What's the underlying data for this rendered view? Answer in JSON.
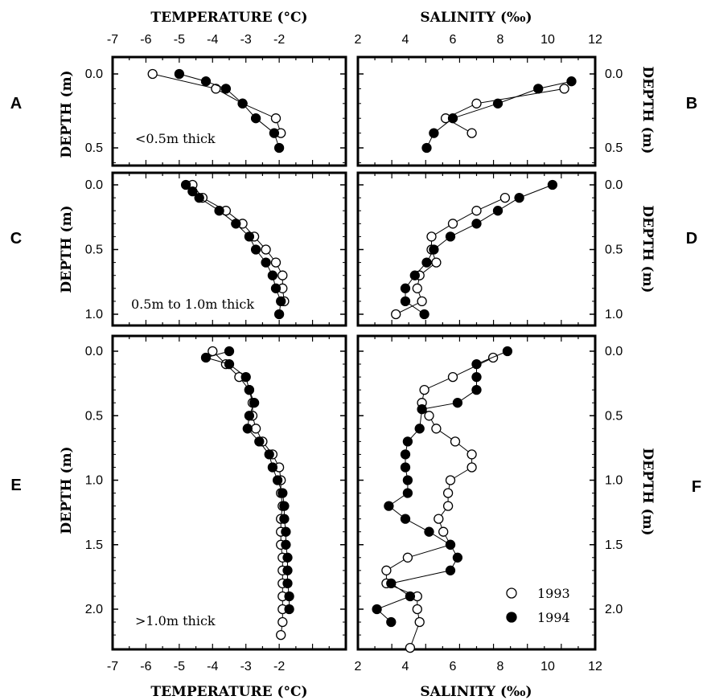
{
  "labels": {
    "temperature_axis": "TEMPERATURE (°C)",
    "salinity_axis": "SALINITY (‰)",
    "depth_axis": "DEPTH (m)"
  },
  "legend": {
    "open": "1993",
    "filled": "1994"
  },
  "chart_data": [
    {
      "panel": "A",
      "type": "scatter",
      "note": "<0.5m thick",
      "xlabel": "TEMPERATURE (°C)",
      "ylabel": "DEPTH (m)",
      "xlim": [
        -7,
        0
      ],
      "ylim": [
        0.5,
        0
      ],
      "ytick_labels": [
        "0.0",
        "0.5"
      ],
      "series": [
        {
          "name": "1993",
          "points": [
            [
              -5.8,
              0.0
            ],
            [
              -3.9,
              0.1
            ],
            [
              -3.1,
              0.2
            ],
            [
              -2.1,
              0.3
            ],
            [
              -1.95,
              0.4
            ]
          ]
        },
        {
          "name": "1994",
          "points": [
            [
              -5.0,
              0.0
            ],
            [
              -4.2,
              0.05
            ],
            [
              -3.6,
              0.1
            ],
            [
              -3.1,
              0.2
            ],
            [
              -2.7,
              0.3
            ],
            [
              -2.15,
              0.4
            ],
            [
              -2.0,
              0.5
            ]
          ]
        }
      ]
    },
    {
      "panel": "B",
      "type": "scatter",
      "xlabel": "SALINITY (‰)",
      "ylabel": "DEPTH (m)",
      "xlim": [
        2,
        12
      ],
      "ylim": [
        0.5,
        0
      ],
      "ytick_labels": [
        "0.0",
        "0.5"
      ],
      "series": [
        {
          "name": "1993",
          "points": [
            [
              10.7,
              0.1
            ],
            [
              7.0,
              0.2
            ],
            [
              5.7,
              0.3
            ],
            [
              6.8,
              0.4
            ]
          ]
        },
        {
          "name": "1994",
          "points": [
            [
              11.0,
              0.05
            ],
            [
              9.6,
              0.1
            ],
            [
              7.9,
              0.2
            ],
            [
              6.0,
              0.3
            ],
            [
              5.2,
              0.4
            ],
            [
              4.9,
              0.5
            ]
          ]
        }
      ]
    },
    {
      "panel": "C",
      "type": "scatter",
      "note": "0.5m to 1.0m thick",
      "xlabel": "TEMPERATURE (°C)",
      "ylabel": "DEPTH (m)",
      "xlim": [
        -7,
        0
      ],
      "ylim": [
        1.0,
        0
      ],
      "ytick_labels": [
        "0.0",
        "0.5",
        "1.0"
      ],
      "series": [
        {
          "name": "1993",
          "points": [
            [
              -4.6,
              0.0
            ],
            [
              -4.3,
              0.1
            ],
            [
              -3.6,
              0.2
            ],
            [
              -3.1,
              0.3
            ],
            [
              -2.75,
              0.4
            ],
            [
              -2.4,
              0.5
            ],
            [
              -2.1,
              0.6
            ],
            [
              -1.9,
              0.7
            ],
            [
              -1.9,
              0.8
            ],
            [
              -1.85,
              0.9
            ]
          ]
        },
        {
          "name": "1994",
          "points": [
            [
              -4.8,
              0.0
            ],
            [
              -4.6,
              0.05
            ],
            [
              -4.4,
              0.1
            ],
            [
              -3.8,
              0.2
            ],
            [
              -3.3,
              0.3
            ],
            [
              -2.9,
              0.4
            ],
            [
              -2.7,
              0.5
            ],
            [
              -2.4,
              0.6
            ],
            [
              -2.2,
              0.7
            ],
            [
              -2.1,
              0.8
            ],
            [
              -1.95,
              0.9
            ],
            [
              -2.0,
              1.0
            ]
          ]
        }
      ]
    },
    {
      "panel": "D",
      "type": "scatter",
      "xlabel": "SALINITY (‰)",
      "ylabel": "DEPTH (m)",
      "xlim": [
        2,
        12
      ],
      "ylim": [
        1.0,
        0
      ],
      "ytick_labels": [
        "0.0",
        "0.5",
        "1.0"
      ],
      "series": [
        {
          "name": "1993",
          "points": [
            [
              8.2,
              0.1
            ],
            [
              7.0,
              0.2
            ],
            [
              6.0,
              0.3
            ],
            [
              5.1,
              0.4
            ],
            [
              5.1,
              0.5
            ],
            [
              5.3,
              0.6
            ],
            [
              4.6,
              0.7
            ],
            [
              4.5,
              0.8
            ],
            [
              4.7,
              0.9
            ],
            [
              3.6,
              1.0
            ]
          ]
        },
        {
          "name": "1994",
          "points": [
            [
              10.2,
              0.0
            ],
            [
              8.8,
              0.1
            ],
            [
              7.9,
              0.2
            ],
            [
              7.0,
              0.3
            ],
            [
              5.9,
              0.4
            ],
            [
              5.2,
              0.5
            ],
            [
              4.9,
              0.6
            ],
            [
              4.4,
              0.7
            ],
            [
              4.0,
              0.8
            ],
            [
              4.0,
              0.9
            ],
            [
              4.8,
              1.0
            ]
          ]
        }
      ]
    },
    {
      "panel": "E",
      "type": "scatter",
      "note": ">1.0m thick",
      "xlabel": "TEMPERATURE (°C)",
      "ylabel": "DEPTH (m)",
      "xlim": [
        -7,
        0
      ],
      "ylim": [
        2.3,
        0
      ],
      "ytick_labels": [
        "0.0",
        "0.5",
        "1.0",
        "1.5",
        "2.0"
      ],
      "series": [
        {
          "name": "1993",
          "points": [
            [
              -4.0,
              0.0
            ],
            [
              -3.6,
              0.1
            ],
            [
              -3.2,
              0.2
            ],
            [
              -2.9,
              0.3
            ],
            [
              -2.8,
              0.4
            ],
            [
              -2.8,
              0.5
            ],
            [
              -2.7,
              0.6
            ],
            [
              -2.5,
              0.7
            ],
            [
              -2.2,
              0.8
            ],
            [
              -2.0,
              0.9
            ],
            [
              -1.95,
              1.0
            ],
            [
              -1.95,
              1.1
            ],
            [
              -1.9,
              1.2
            ],
            [
              -1.95,
              1.3
            ],
            [
              -1.95,
              1.4
            ],
            [
              -1.95,
              1.5
            ],
            [
              -1.9,
              1.6
            ],
            [
              -1.9,
              1.7
            ],
            [
              -1.9,
              1.8
            ],
            [
              -1.9,
              1.9
            ],
            [
              -1.9,
              2.0
            ],
            [
              -1.9,
              2.1
            ],
            [
              -1.95,
              2.2
            ]
          ]
        },
        {
          "name": "1994",
          "points": [
            [
              -3.5,
              0.0
            ],
            [
              -4.2,
              0.05
            ],
            [
              -3.5,
              0.1
            ],
            [
              -3.0,
              0.2
            ],
            [
              -2.9,
              0.3
            ],
            [
              -2.75,
              0.4
            ],
            [
              -2.9,
              0.5
            ],
            [
              -2.95,
              0.6
            ],
            [
              -2.6,
              0.7
            ],
            [
              -2.3,
              0.8
            ],
            [
              -2.2,
              0.9
            ],
            [
              -2.05,
              1.0
            ],
            [
              -1.9,
              1.1
            ],
            [
              -1.85,
              1.2
            ],
            [
              -1.85,
              1.3
            ],
            [
              -1.8,
              1.4
            ],
            [
              -1.8,
              1.5
            ],
            [
              -1.75,
              1.6
            ],
            [
              -1.75,
              1.7
            ],
            [
              -1.75,
              1.8
            ],
            [
              -1.7,
              1.9
            ],
            [
              -1.7,
              2.0
            ]
          ]
        }
      ]
    },
    {
      "panel": "F",
      "type": "scatter",
      "xlabel": "SALINITY (‰)",
      "ylabel": "DEPTH (m)",
      "xlim": [
        2,
        12
      ],
      "ylim": [
        2.3,
        0
      ],
      "ytick_labels": [
        "0.0",
        "0.5",
        "1.0",
        "1.5",
        "2.0"
      ],
      "series": [
        {
          "name": "1993",
          "points": [
            [
              7.7,
              0.05
            ],
            [
              6.0,
              0.2
            ],
            [
              4.8,
              0.3
            ],
            [
              4.7,
              0.4
            ],
            [
              5.0,
              0.5
            ],
            [
              5.3,
              0.6
            ],
            [
              6.1,
              0.7
            ],
            [
              6.8,
              0.8
            ],
            [
              6.8,
              0.9
            ],
            [
              5.9,
              1.0
            ],
            [
              5.8,
              1.1
            ],
            [
              5.8,
              1.2
            ],
            [
              5.4,
              1.3
            ],
            [
              5.6,
              1.4
            ],
            [
              5.9,
              1.5
            ],
            [
              4.1,
              1.6
            ],
            [
              3.2,
              1.7
            ],
            [
              3.2,
              1.8
            ],
            [
              4.5,
              1.9
            ],
            [
              4.5,
              2.0
            ],
            [
              4.6,
              2.1
            ],
            [
              4.2,
              2.3
            ]
          ]
        },
        {
          "name": "1994",
          "points": [
            [
              8.3,
              0.0
            ],
            [
              7.0,
              0.1
            ],
            [
              7.0,
              0.2
            ],
            [
              7.0,
              0.3
            ],
            [
              6.2,
              0.4
            ],
            [
              4.7,
              0.45
            ],
            [
              4.6,
              0.6
            ],
            [
              4.1,
              0.7
            ],
            [
              4.0,
              0.8
            ],
            [
              4.0,
              0.9
            ],
            [
              4.1,
              1.0
            ],
            [
              4.1,
              1.1
            ],
            [
              3.3,
              1.2
            ],
            [
              4.0,
              1.3
            ],
            [
              5.0,
              1.4
            ],
            [
              5.9,
              1.5
            ],
            [
              6.2,
              1.6
            ],
            [
              5.9,
              1.7
            ],
            [
              3.4,
              1.8
            ],
            [
              4.2,
              1.9
            ],
            [
              2.8,
              2.0
            ],
            [
              3.4,
              2.1
            ]
          ]
        }
      ]
    }
  ]
}
